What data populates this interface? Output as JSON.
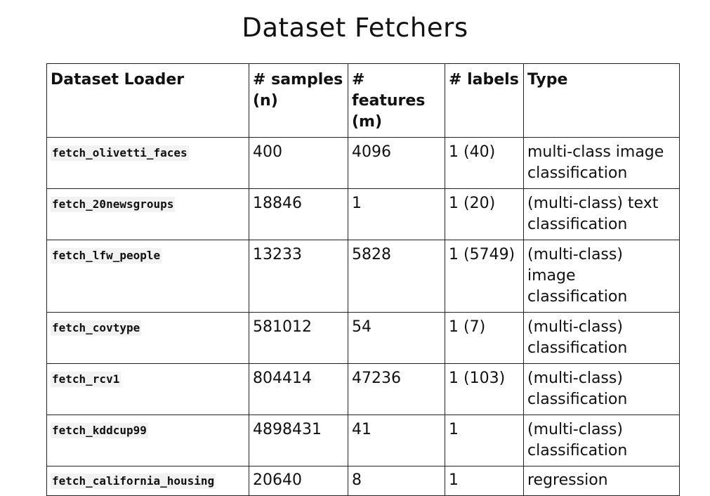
{
  "title": "Dataset Fetchers",
  "table": {
    "headers": [
      "Dataset Loader",
      "# samples (n)",
      "# features (m)",
      "# labels",
      "Type"
    ],
    "rows": [
      {
        "loader": "fetch_olivetti_faces",
        "samples": "400",
        "features": "4096",
        "labels": "1 (40)",
        "type": "multi-class image classification"
      },
      {
        "loader": "fetch_20newsgroups",
        "samples": "18846",
        "features": "1",
        "labels": "1 (20)",
        "type": "(multi-class) text classification"
      },
      {
        "loader": "fetch_lfw_people",
        "samples": "13233",
        "features": "5828",
        "labels": "1 (5749)",
        "type": "(multi-class) image classification"
      },
      {
        "loader": "fetch_covtype",
        "samples": "581012",
        "features": "54",
        "labels": "1 (7)",
        "type": "(multi-class) classification"
      },
      {
        "loader": "fetch_rcv1",
        "samples": "804414",
        "features": "47236",
        "labels": "1 (103)",
        "type": "(multi-class) classification"
      },
      {
        "loader": "fetch_kddcup99",
        "samples": "4898431",
        "features": "41",
        "labels": "1",
        "type": "(multi-class) classification"
      },
      {
        "loader": "fetch_california_housing",
        "samples": "20640",
        "features": "8",
        "labels": "1",
        "type": "regression"
      }
    ]
  }
}
